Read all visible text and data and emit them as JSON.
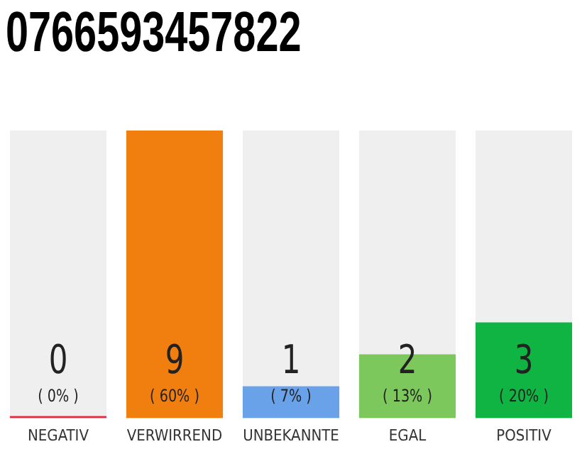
{
  "chart_data": {
    "type": "bar",
    "title": "0766593457822",
    "categories": [
      "NEGATIV",
      "VERWIRREND",
      "UNBEKANNTE",
      "EGAL",
      "POSITIV"
    ],
    "values": [
      0,
      9,
      1,
      2,
      3
    ],
    "colors": [
      "#e8293b",
      "#f07f0f",
      "#6aa2ea",
      "#7dc85c",
      "#0fb443"
    ],
    "value_labels": [
      "0",
      "9",
      "1",
      "2",
      "3"
    ],
    "annotations": [
      "( 0% )",
      "( 60% )",
      "( 7% )",
      "( 13% )",
      "( 20% )"
    ],
    "grid": false,
    "legend": false
  }
}
